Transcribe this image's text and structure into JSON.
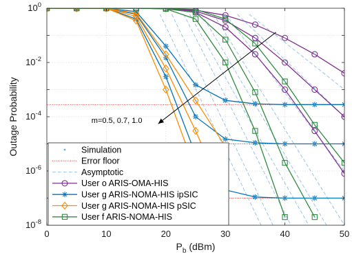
{
  "chart_data": {
    "type": "line",
    "xlabel": "P_b (dBm)",
    "ylabel": "Outage Probability",
    "xlim": [
      0,
      50
    ],
    "ylim_exp": [
      -8,
      0
    ],
    "y_scale": "log",
    "grid": true,
    "legend_position": "bottom-left",
    "x_ticks": [
      "0",
      "10",
      "20",
      "30",
      "40",
      "50"
    ],
    "y_tick_exponents": [
      "0",
      "-2",
      "-4",
      "-6",
      "-8"
    ],
    "annotation": "m=0.5, 0.7, 1.0",
    "legend": [
      {
        "label": "Simulation",
        "kind": "dot",
        "color": "#6aaed6"
      },
      {
        "label": "Error floor",
        "kind": "dotted",
        "color": "#e03030"
      },
      {
        "label": "Asymptotic",
        "kind": "dashed",
        "color": "#9dc3e6"
      },
      {
        "label": "User o ARIS-OMA-HIS",
        "kind": "circle",
        "color": "#7e2f8e"
      },
      {
        "label": "User g ARIS-NOMA-HIS ipSIC",
        "kind": "star",
        "color": "#0072bd"
      },
      {
        "label": "User g ARIS-NOMA-HIS pSIC",
        "kind": "diamond",
        "color": "#ff8c00"
      },
      {
        "label": "User f ARIS-NOMA-HIS",
        "kind": "square",
        "color": "#2e8b3e"
      }
    ],
    "series": [
      {
        "name": "User o ARIS-OMA-HIS",
        "color": "#7e2f8e",
        "marker": "circle",
        "curves": [
          {
            "x": [
              0,
              5,
              10,
              15,
              20,
              25,
              30,
              35,
              40,
              45,
              50
            ],
            "y": [
              1,
              1,
              1,
              1,
              0.98,
              0.85,
              0.55,
              0.25,
              0.08,
              0.02,
              0.004
            ]
          },
          {
            "x": [
              0,
              5,
              10,
              15,
              20,
              25,
              30,
              35,
              40,
              45,
              50
            ],
            "y": [
              1,
              1,
              1,
              1,
              0.97,
              0.78,
              0.35,
              0.08,
              0.01,
              0.001,
              0.0001
            ]
          },
          {
            "x": [
              0,
              5,
              10,
              15,
              20,
              25,
              30,
              35,
              40,
              45,
              50
            ],
            "y": [
              1,
              1,
              1,
              1,
              0.95,
              0.7,
              0.2,
              0.02,
              0.001,
              3e-05,
              8e-07
            ]
          }
        ]
      },
      {
        "name": "User g ARIS-NOMA-HIS ipSIC",
        "color": "#0072bd",
        "marker": "star",
        "curves": [
          {
            "x": [
              0,
              5,
              10,
              15,
              20,
              25,
              30,
              35,
              40,
              45,
              50
            ],
            "y": [
              1,
              1,
              1,
              0.75,
              0.04,
              0.0015,
              0.0004,
              0.0003,
              0.00028,
              0.00028,
              0.00028
            ]
          },
          {
            "x": [
              0,
              5,
              10,
              15,
              20,
              25,
              30,
              35,
              40,
              45,
              50
            ],
            "y": [
              1,
              1,
              1,
              0.6,
              0.015,
              0.0001,
              1.5e-05,
              1.1e-05,
              1e-05,
              1e-05,
              1e-05
            ]
          },
          {
            "x": [
              0,
              5,
              10,
              15,
              20,
              25,
              30,
              35,
              40,
              45,
              50
            ],
            "y": [
              1,
              1,
              1,
              0.4,
              0.003,
              4e-06,
              2e-07,
              1.1e-07,
              1e-07,
              1e-07,
              1e-07
            ]
          }
        ]
      },
      {
        "name": "User g ARIS-NOMA-HIS pSIC",
        "color": "#ff8c00",
        "marker": "diamond",
        "curves": [
          {
            "x": [
              0,
              5,
              10,
              15,
              20,
              25,
              30
            ],
            "y": [
              1,
              1,
              1,
              0.65,
              0.02,
              0.0004,
              8e-06
            ]
          },
          {
            "x": [
              0,
              5,
              10,
              15,
              20,
              25,
              28
            ],
            "y": [
              1,
              1,
              1,
              0.5,
              0.006,
              3e-05,
              1e-06
            ]
          },
          {
            "x": [
              0,
              5,
              10,
              15,
              20,
              25
            ],
            "y": [
              1,
              1,
              1,
              0.35,
              0.001,
              1e-06
            ]
          }
        ]
      },
      {
        "name": "User f ARIS-NOMA-HIS",
        "color": "#2e8b3e",
        "marker": "square",
        "curves": [
          {
            "x": [
              0,
              5,
              10,
              15,
              20,
              25,
              30,
              35,
              40,
              45,
              50
            ],
            "y": [
              1,
              1,
              1,
              1,
              0.99,
              0.9,
              0.4,
              0.05,
              0.002,
              5e-05,
              2e-06
            ]
          },
          {
            "x": [
              0,
              5,
              10,
              15,
              20,
              25,
              30,
              35,
              40,
              45
            ],
            "y": [
              1,
              1,
              1,
              1,
              0.97,
              0.7,
              0.07,
              0.0008,
              2e-06,
              2e-08
            ]
          },
          {
            "x": [
              0,
              5,
              10,
              15,
              20,
              25,
              30,
              35,
              40
            ],
            "y": [
              1,
              1,
              1,
              1,
              0.95,
              0.4,
              0.01,
              3e-05,
              2e-08
            ]
          }
        ]
      }
    ],
    "error_floors": [
      0.00028,
      1e-05,
      1e-07
    ],
    "asymptotes": [
      {
        "p": [
          19,
          0.6
        ],
        "q": [
          36,
          1e-08
        ]
      },
      {
        "p": [
          21,
          0.6
        ],
        "q": [
          38,
          1e-08
        ]
      },
      {
        "p": [
          23,
          0.6
        ],
        "q": [
          41,
          1e-08
        ]
      },
      {
        "p": [
          24,
          0.6
        ],
        "q": [
          44,
          1e-08
        ]
      },
      {
        "p": [
          26,
          0.6
        ],
        "q": [
          47,
          1e-08
        ]
      },
      {
        "p": [
          28,
          0.6
        ],
        "q": [
          50,
          1e-08
        ]
      },
      {
        "p": [
          30,
          0.6
        ],
        "q": [
          50,
          1e-06
        ]
      },
      {
        "p": [
          32,
          0.6
        ],
        "q": [
          50,
          0.0001
        ]
      },
      {
        "p": [
          34,
          0.6
        ],
        "q": [
          50,
          0.001
        ]
      }
    ]
  }
}
